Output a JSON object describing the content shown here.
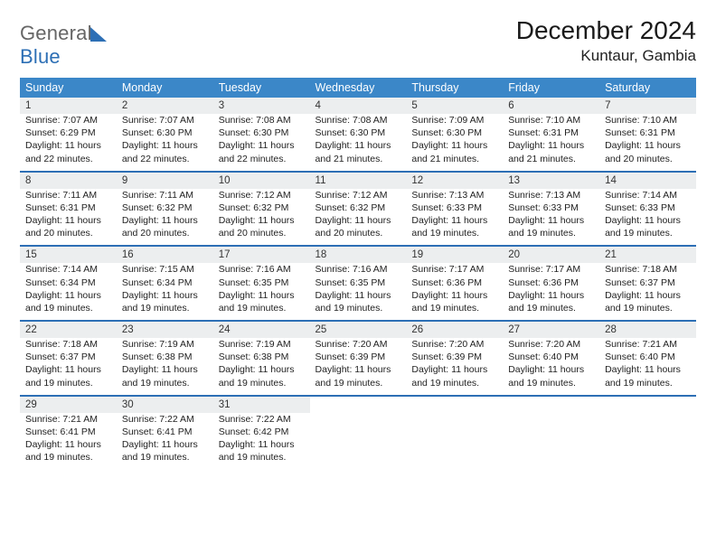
{
  "logo": {
    "part1": "General",
    "part2": "Blue"
  },
  "title": "December 2024",
  "location": "Kuntaur, Gambia",
  "headers": [
    "Sunday",
    "Monday",
    "Tuesday",
    "Wednesday",
    "Thursday",
    "Friday",
    "Saturday"
  ],
  "colors": {
    "header_bg": "#3b87c8",
    "header_text": "#ffffff",
    "daynum_bg": "#eceeef",
    "rule": "#2d6fb5",
    "logo_blue": "#2d6fb5"
  },
  "font": {
    "family": "Arial",
    "title_size_pt": 21,
    "location_size_pt": 13,
    "header_size_pt": 9.5,
    "cell_size_pt": 8
  },
  "weeks": [
    [
      {
        "n": "1",
        "sr": "Sunrise: 7:07 AM",
        "ss": "Sunset: 6:29 PM",
        "d1": "Daylight: 11 hours",
        "d2": "and 22 minutes."
      },
      {
        "n": "2",
        "sr": "Sunrise: 7:07 AM",
        "ss": "Sunset: 6:30 PM",
        "d1": "Daylight: 11 hours",
        "d2": "and 22 minutes."
      },
      {
        "n": "3",
        "sr": "Sunrise: 7:08 AM",
        "ss": "Sunset: 6:30 PM",
        "d1": "Daylight: 11 hours",
        "d2": "and 22 minutes."
      },
      {
        "n": "4",
        "sr": "Sunrise: 7:08 AM",
        "ss": "Sunset: 6:30 PM",
        "d1": "Daylight: 11 hours",
        "d2": "and 21 minutes."
      },
      {
        "n": "5",
        "sr": "Sunrise: 7:09 AM",
        "ss": "Sunset: 6:30 PM",
        "d1": "Daylight: 11 hours",
        "d2": "and 21 minutes."
      },
      {
        "n": "6",
        "sr": "Sunrise: 7:10 AM",
        "ss": "Sunset: 6:31 PM",
        "d1": "Daylight: 11 hours",
        "d2": "and 21 minutes."
      },
      {
        "n": "7",
        "sr": "Sunrise: 7:10 AM",
        "ss": "Sunset: 6:31 PM",
        "d1": "Daylight: 11 hours",
        "d2": "and 20 minutes."
      }
    ],
    [
      {
        "n": "8",
        "sr": "Sunrise: 7:11 AM",
        "ss": "Sunset: 6:31 PM",
        "d1": "Daylight: 11 hours",
        "d2": "and 20 minutes."
      },
      {
        "n": "9",
        "sr": "Sunrise: 7:11 AM",
        "ss": "Sunset: 6:32 PM",
        "d1": "Daylight: 11 hours",
        "d2": "and 20 minutes."
      },
      {
        "n": "10",
        "sr": "Sunrise: 7:12 AM",
        "ss": "Sunset: 6:32 PM",
        "d1": "Daylight: 11 hours",
        "d2": "and 20 minutes."
      },
      {
        "n": "11",
        "sr": "Sunrise: 7:12 AM",
        "ss": "Sunset: 6:32 PM",
        "d1": "Daylight: 11 hours",
        "d2": "and 20 minutes."
      },
      {
        "n": "12",
        "sr": "Sunrise: 7:13 AM",
        "ss": "Sunset: 6:33 PM",
        "d1": "Daylight: 11 hours",
        "d2": "and 19 minutes."
      },
      {
        "n": "13",
        "sr": "Sunrise: 7:13 AM",
        "ss": "Sunset: 6:33 PM",
        "d1": "Daylight: 11 hours",
        "d2": "and 19 minutes."
      },
      {
        "n": "14",
        "sr": "Sunrise: 7:14 AM",
        "ss": "Sunset: 6:33 PM",
        "d1": "Daylight: 11 hours",
        "d2": "and 19 minutes."
      }
    ],
    [
      {
        "n": "15",
        "sr": "Sunrise: 7:14 AM",
        "ss": "Sunset: 6:34 PM",
        "d1": "Daylight: 11 hours",
        "d2": "and 19 minutes."
      },
      {
        "n": "16",
        "sr": "Sunrise: 7:15 AM",
        "ss": "Sunset: 6:34 PM",
        "d1": "Daylight: 11 hours",
        "d2": "and 19 minutes."
      },
      {
        "n": "17",
        "sr": "Sunrise: 7:16 AM",
        "ss": "Sunset: 6:35 PM",
        "d1": "Daylight: 11 hours",
        "d2": "and 19 minutes."
      },
      {
        "n": "18",
        "sr": "Sunrise: 7:16 AM",
        "ss": "Sunset: 6:35 PM",
        "d1": "Daylight: 11 hours",
        "d2": "and 19 minutes."
      },
      {
        "n": "19",
        "sr": "Sunrise: 7:17 AM",
        "ss": "Sunset: 6:36 PM",
        "d1": "Daylight: 11 hours",
        "d2": "and 19 minutes."
      },
      {
        "n": "20",
        "sr": "Sunrise: 7:17 AM",
        "ss": "Sunset: 6:36 PM",
        "d1": "Daylight: 11 hours",
        "d2": "and 19 minutes."
      },
      {
        "n": "21",
        "sr": "Sunrise: 7:18 AM",
        "ss": "Sunset: 6:37 PM",
        "d1": "Daylight: 11 hours",
        "d2": "and 19 minutes."
      }
    ],
    [
      {
        "n": "22",
        "sr": "Sunrise: 7:18 AM",
        "ss": "Sunset: 6:37 PM",
        "d1": "Daylight: 11 hours",
        "d2": "and 19 minutes."
      },
      {
        "n": "23",
        "sr": "Sunrise: 7:19 AM",
        "ss": "Sunset: 6:38 PM",
        "d1": "Daylight: 11 hours",
        "d2": "and 19 minutes."
      },
      {
        "n": "24",
        "sr": "Sunrise: 7:19 AM",
        "ss": "Sunset: 6:38 PM",
        "d1": "Daylight: 11 hours",
        "d2": "and 19 minutes."
      },
      {
        "n": "25",
        "sr": "Sunrise: 7:20 AM",
        "ss": "Sunset: 6:39 PM",
        "d1": "Daylight: 11 hours",
        "d2": "and 19 minutes."
      },
      {
        "n": "26",
        "sr": "Sunrise: 7:20 AM",
        "ss": "Sunset: 6:39 PM",
        "d1": "Daylight: 11 hours",
        "d2": "and 19 minutes."
      },
      {
        "n": "27",
        "sr": "Sunrise: 7:20 AM",
        "ss": "Sunset: 6:40 PM",
        "d1": "Daylight: 11 hours",
        "d2": "and 19 minutes."
      },
      {
        "n": "28",
        "sr": "Sunrise: 7:21 AM",
        "ss": "Sunset: 6:40 PM",
        "d1": "Daylight: 11 hours",
        "d2": "and 19 minutes."
      }
    ],
    [
      {
        "n": "29",
        "sr": "Sunrise: 7:21 AM",
        "ss": "Sunset: 6:41 PM",
        "d1": "Daylight: 11 hours",
        "d2": "and 19 minutes."
      },
      {
        "n": "30",
        "sr": "Sunrise: 7:22 AM",
        "ss": "Sunset: 6:41 PM",
        "d1": "Daylight: 11 hours",
        "d2": "and 19 minutes."
      },
      {
        "n": "31",
        "sr": "Sunrise: 7:22 AM",
        "ss": "Sunset: 6:42 PM",
        "d1": "Daylight: 11 hours",
        "d2": "and 19 minutes."
      },
      null,
      null,
      null,
      null
    ]
  ]
}
